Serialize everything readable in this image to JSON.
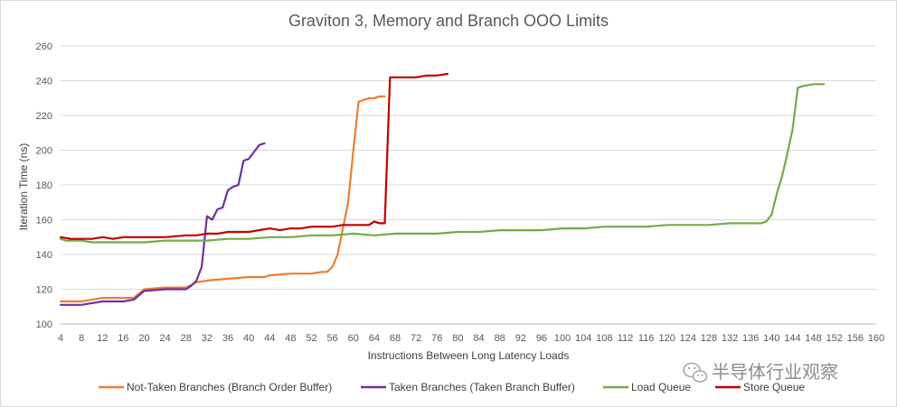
{
  "chart_data": {
    "type": "line",
    "title": "Graviton 3, Memory and Branch OOO Limits",
    "xlabel": "Instructions Between Long Latency Loads",
    "ylabel": "Iteration Time (ns)",
    "xlim": [
      4,
      160
    ],
    "ylim": [
      100,
      260
    ],
    "x_ticks": [
      4,
      8,
      12,
      16,
      20,
      24,
      28,
      32,
      36,
      40,
      44,
      48,
      52,
      56,
      60,
      64,
      68,
      72,
      76,
      80,
      84,
      88,
      92,
      96,
      100,
      104,
      108,
      112,
      116,
      120,
      124,
      128,
      132,
      136,
      140,
      144,
      148,
      152,
      156,
      160
    ],
    "y_ticks": [
      100,
      120,
      140,
      160,
      180,
      200,
      220,
      240,
      260
    ],
    "grid": "horizontal",
    "legend_position": "bottom",
    "series": [
      {
        "name": "Not-Taken Branches (Branch Order Buffer)",
        "color": "#ED7D31",
        "points": [
          [
            4,
            113
          ],
          [
            8,
            113
          ],
          [
            10,
            114
          ],
          [
            12,
            115
          ],
          [
            16,
            115
          ],
          [
            18,
            115
          ],
          [
            20,
            120
          ],
          [
            24,
            121
          ],
          [
            26,
            121
          ],
          [
            28,
            121
          ],
          [
            30,
            124
          ],
          [
            32,
            125
          ],
          [
            36,
            126
          ],
          [
            40,
            127
          ],
          [
            43,
            127
          ],
          [
            44,
            128
          ],
          [
            48,
            129
          ],
          [
            50,
            129
          ],
          [
            52,
            129
          ],
          [
            54,
            130
          ],
          [
            55,
            130
          ],
          [
            56,
            133
          ],
          [
            57,
            140
          ],
          [
            58,
            155
          ],
          [
            59,
            170
          ],
          [
            60,
            200
          ],
          [
            61,
            228
          ],
          [
            62,
            229
          ],
          [
            63,
            230
          ],
          [
            64,
            230
          ],
          [
            65,
            231
          ],
          [
            66,
            231
          ]
        ]
      },
      {
        "name": "Taken Branches (Taken Branch Buffer)",
        "color": "#7030A0",
        "points": [
          [
            4,
            111
          ],
          [
            8,
            111
          ],
          [
            10,
            112
          ],
          [
            12,
            113
          ],
          [
            16,
            113
          ],
          [
            18,
            114
          ],
          [
            20,
            119
          ],
          [
            24,
            120
          ],
          [
            28,
            120
          ],
          [
            29,
            122
          ],
          [
            30,
            125
          ],
          [
            31,
            133
          ],
          [
            32,
            162
          ],
          [
            33,
            160
          ],
          [
            34,
            166
          ],
          [
            35,
            167
          ],
          [
            36,
            177
          ],
          [
            37,
            179
          ],
          [
            38,
            180
          ],
          [
            39,
            194
          ],
          [
            40,
            195
          ],
          [
            41,
            199
          ],
          [
            42,
            203
          ],
          [
            43,
            204
          ]
        ]
      },
      {
        "name": "Load Queue",
        "color": "#70AD47",
        "points": [
          [
            4,
            149
          ],
          [
            5,
            148
          ],
          [
            8,
            148
          ],
          [
            10,
            147
          ],
          [
            12,
            147
          ],
          [
            14,
            147
          ],
          [
            16,
            147
          ],
          [
            20,
            147
          ],
          [
            24,
            148
          ],
          [
            28,
            148
          ],
          [
            32,
            148
          ],
          [
            36,
            149
          ],
          [
            40,
            149
          ],
          [
            44,
            150
          ],
          [
            48,
            150
          ],
          [
            52,
            151
          ],
          [
            56,
            151
          ],
          [
            60,
            152
          ],
          [
            64,
            151
          ],
          [
            68,
            152
          ],
          [
            72,
            152
          ],
          [
            76,
            152
          ],
          [
            80,
            153
          ],
          [
            84,
            153
          ],
          [
            88,
            154
          ],
          [
            92,
            154
          ],
          [
            96,
            154
          ],
          [
            100,
            155
          ],
          [
            104,
            155
          ],
          [
            108,
            156
          ],
          [
            112,
            156
          ],
          [
            116,
            156
          ],
          [
            120,
            157
          ],
          [
            124,
            157
          ],
          [
            128,
            157
          ],
          [
            132,
            158
          ],
          [
            136,
            158
          ],
          [
            138,
            158
          ],
          [
            139,
            159
          ],
          [
            140,
            163
          ],
          [
            141,
            175
          ],
          [
            142,
            185
          ],
          [
            143,
            198
          ],
          [
            144,
            212
          ],
          [
            145,
            236
          ],
          [
            146,
            237
          ],
          [
            148,
            238
          ],
          [
            150,
            238
          ]
        ]
      },
      {
        "name": "Store Queue",
        "color": "#C00000",
        "points": [
          [
            4,
            150
          ],
          [
            6,
            149
          ],
          [
            8,
            149
          ],
          [
            10,
            149
          ],
          [
            12,
            150
          ],
          [
            14,
            149
          ],
          [
            16,
            150
          ],
          [
            20,
            150
          ],
          [
            24,
            150
          ],
          [
            28,
            151
          ],
          [
            30,
            151
          ],
          [
            32,
            152
          ],
          [
            34,
            152
          ],
          [
            36,
            153
          ],
          [
            40,
            153
          ],
          [
            44,
            155
          ],
          [
            46,
            154
          ],
          [
            48,
            155
          ],
          [
            50,
            155
          ],
          [
            52,
            156
          ],
          [
            56,
            156
          ],
          [
            58,
            157
          ],
          [
            60,
            157
          ],
          [
            62,
            157
          ],
          [
            63,
            157
          ],
          [
            64,
            159
          ],
          [
            65,
            158
          ],
          [
            66,
            158
          ],
          [
            67,
            242
          ],
          [
            70,
            242
          ],
          [
            72,
            242
          ],
          [
            74,
            243
          ],
          [
            76,
            243
          ],
          [
            78,
            244
          ]
        ]
      }
    ]
  },
  "watermark": "半导体行业观察"
}
